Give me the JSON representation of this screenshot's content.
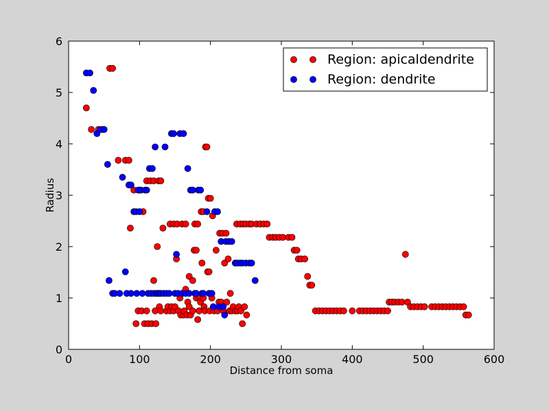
{
  "chart_data": {
    "type": "scatter",
    "title": "",
    "xlabel": "Distance from soma",
    "ylabel": "Radius",
    "xlim": [
      0,
      600
    ],
    "ylim": [
      0,
      6
    ],
    "xticks": [
      "0",
      "100",
      "200",
      "300",
      "400",
      "500",
      "600"
    ],
    "yticks": [
      "0",
      "1",
      "2",
      "3",
      "4",
      "5",
      "6"
    ],
    "grid": false,
    "legend_position": "top-right",
    "series": [
      {
        "name": "Region: apicaldendrite",
        "color": "#ff0000",
        "points": [
          [
            25,
            4.7
          ],
          [
            32,
            4.28
          ],
          [
            42,
            4.28
          ],
          [
            48,
            4.28
          ],
          [
            58,
            5.47
          ],
          [
            62,
            5.47
          ],
          [
            70,
            3.68
          ],
          [
            80,
            3.68
          ],
          [
            85,
            3.68
          ],
          [
            87,
            2.36
          ],
          [
            92,
            3.1
          ],
          [
            95,
            0.5
          ],
          [
            98,
            0.75
          ],
          [
            100,
            3.1
          ],
          [
            103,
            0.75
          ],
          [
            105,
            2.68
          ],
          [
            107,
            0.5
          ],
          [
            110,
            3.28
          ],
          [
            110,
            0.75
          ],
          [
            112,
            0.5
          ],
          [
            115,
            3.28
          ],
          [
            117,
            0.5
          ],
          [
            120,
            1.34
          ],
          [
            120,
            3.28
          ],
          [
            122,
            0.75
          ],
          [
            123,
            0.5
          ],
          [
            125,
            2.0
          ],
          [
            127,
            3.28
          ],
          [
            128,
            0.83
          ],
          [
            130,
            3.28
          ],
          [
            130,
            0.75
          ],
          [
            133,
            2.36
          ],
          [
            138,
            0.75
          ],
          [
            140,
            0.83
          ],
          [
            143,
            2.44
          ],
          [
            143,
            0.75
          ],
          [
            145,
            0.83
          ],
          [
            148,
            2.44
          ],
          [
            148,
            0.75
          ],
          [
            150,
            0.83
          ],
          [
            152,
            1.76
          ],
          [
            153,
            2.44
          ],
          [
            155,
            0.75
          ],
          [
            157,
            1.0
          ],
          [
            158,
            0.67
          ],
          [
            160,
            2.44
          ],
          [
            162,
            0.67
          ],
          [
            163,
            0.75
          ],
          [
            165,
            1.17
          ],
          [
            165,
            2.44
          ],
          [
            167,
            0.67
          ],
          [
            168,
            0.92
          ],
          [
            170,
            0.83
          ],
          [
            170,
            1.42
          ],
          [
            172,
            0.67
          ],
          [
            175,
            1.34
          ],
          [
            175,
            0.75
          ],
          [
            177,
            1.93
          ],
          [
            178,
            2.44
          ],
          [
            180,
            1.0
          ],
          [
            180,
            1.93
          ],
          [
            182,
            0.58
          ],
          [
            182,
            2.44
          ],
          [
            184,
            0.75
          ],
          [
            185,
            1.0
          ],
          [
            186,
            0.92
          ],
          [
            187,
            2.68
          ],
          [
            188,
            1.68
          ],
          [
            190,
            2.68
          ],
          [
            190,
            1.0
          ],
          [
            191,
            0.83
          ],
          [
            192,
            0.75
          ],
          [
            193,
            3.94
          ],
          [
            195,
            3.94
          ],
          [
            196,
            1.51
          ],
          [
            197,
            2.94
          ],
          [
            198,
            1.51
          ],
          [
            199,
            0.75
          ],
          [
            200,
            2.94
          ],
          [
            202,
            1.0
          ],
          [
            203,
            2.6
          ],
          [
            205,
            0.75
          ],
          [
            208,
            1.93
          ],
          [
            210,
            0.75
          ],
          [
            212,
            0.92
          ],
          [
            213,
            2.26
          ],
          [
            215,
            0.92
          ],
          [
            217,
            2.26
          ],
          [
            218,
            0.75
          ],
          [
            220,
            1.68
          ],
          [
            222,
            2.26
          ],
          [
            223,
            0.92
          ],
          [
            225,
            1.76
          ],
          [
            227,
            0.75
          ],
          [
            228,
            1.09
          ],
          [
            230,
            0.75
          ],
          [
            232,
            0.83
          ],
          [
            235,
            0.75
          ],
          [
            237,
            2.44
          ],
          [
            238,
            0.75
          ],
          [
            240,
            0.83
          ],
          [
            242,
            2.44
          ],
          [
            243,
            0.75
          ],
          [
            245,
            0.5
          ],
          [
            246,
            2.44
          ],
          [
            248,
            0.83
          ],
          [
            250,
            2.44
          ],
          [
            251,
            0.67
          ],
          [
            255,
            2.44
          ],
          [
            258,
            2.44
          ],
          [
            265,
            2.44
          ],
          [
            270,
            2.44
          ],
          [
            275,
            2.44
          ],
          [
            280,
            2.44
          ],
          [
            283,
            2.18
          ],
          [
            288,
            2.18
          ],
          [
            292,
            2.18
          ],
          [
            297,
            2.18
          ],
          [
            302,
            2.18
          ],
          [
            310,
            2.18
          ],
          [
            315,
            2.18
          ],
          [
            318,
            1.93
          ],
          [
            322,
            1.93
          ],
          [
            324,
            1.76
          ],
          [
            328,
            1.76
          ],
          [
            333,
            1.76
          ],
          [
            337,
            1.42
          ],
          [
            340,
            1.25
          ],
          [
            343,
            1.25
          ],
          [
            348,
            0.75
          ],
          [
            353,
            0.75
          ],
          [
            358,
            0.75
          ],
          [
            363,
            0.75
          ],
          [
            368,
            0.75
          ],
          [
            373,
            0.75
          ],
          [
            378,
            0.75
          ],
          [
            383,
            0.75
          ],
          [
            388,
            0.75
          ],
          [
            400,
            0.75
          ],
          [
            410,
            0.75
          ],
          [
            415,
            0.75
          ],
          [
            420,
            0.75
          ],
          [
            425,
            0.75
          ],
          [
            430,
            0.75
          ],
          [
            435,
            0.75
          ],
          [
            440,
            0.75
          ],
          [
            445,
            0.75
          ],
          [
            450,
            0.75
          ],
          [
            452,
            0.92
          ],
          [
            456,
            0.92
          ],
          [
            460,
            0.92
          ],
          [
            465,
            0.92
          ],
          [
            470,
            0.92
          ],
          [
            475,
            1.85
          ],
          [
            478,
            0.92
          ],
          [
            482,
            0.83
          ],
          [
            487,
            0.83
          ],
          [
            492,
            0.83
          ],
          [
            497,
            0.83
          ],
          [
            502,
            0.83
          ],
          [
            512,
            0.83
          ],
          [
            517,
            0.83
          ],
          [
            522,
            0.83
          ],
          [
            527,
            0.83
          ],
          [
            532,
            0.83
          ],
          [
            537,
            0.83
          ],
          [
            542,
            0.83
          ],
          [
            547,
            0.83
          ],
          [
            552,
            0.83
          ],
          [
            557,
            0.83
          ],
          [
            560,
            0.67
          ],
          [
            564,
            0.67
          ]
        ]
      },
      {
        "name": "Region: dendrite",
        "color": "#0000ff",
        "points": [
          [
            25,
            5.38
          ],
          [
            30,
            5.38
          ],
          [
            35,
            5.04
          ],
          [
            40,
            4.2
          ],
          [
            45,
            4.28
          ],
          [
            50,
            4.28
          ],
          [
            55,
            3.6
          ],
          [
            57,
            1.34
          ],
          [
            62,
            1.09
          ],
          [
            65,
            1.09
          ],
          [
            72,
            1.09
          ],
          [
            76,
            3.35
          ],
          [
            80,
            1.51
          ],
          [
            82,
            1.09
          ],
          [
            85,
            3.2
          ],
          [
            88,
            3.2
          ],
          [
            88,
            1.09
          ],
          [
            92,
            2.68
          ],
          [
            95,
            2.68
          ],
          [
            96,
            1.09
          ],
          [
            98,
            3.1
          ],
          [
            100,
            2.68
          ],
          [
            102,
            3.1
          ],
          [
            104,
            1.09
          ],
          [
            108,
            3.1
          ],
          [
            110,
            3.1
          ],
          [
            112,
            1.09
          ],
          [
            114,
            3.52
          ],
          [
            116,
            1.09
          ],
          [
            118,
            3.52
          ],
          [
            120,
            1.09
          ],
          [
            122,
            3.94
          ],
          [
            124,
            1.09
          ],
          [
            126,
            1.09
          ],
          [
            128,
            1.09
          ],
          [
            130,
            1.09
          ],
          [
            134,
            1.09
          ],
          [
            136,
            3.94
          ],
          [
            138,
            1.09
          ],
          [
            142,
            1.09
          ],
          [
            145,
            4.2
          ],
          [
            148,
            4.2
          ],
          [
            150,
            1.09
          ],
          [
            152,
            1.85
          ],
          [
            154,
            1.09
          ],
          [
            157,
            4.2
          ],
          [
            160,
            1.09
          ],
          [
            162,
            4.2
          ],
          [
            165,
            1.09
          ],
          [
            168,
            3.52
          ],
          [
            170,
            1.09
          ],
          [
            172,
            3.1
          ],
          [
            175,
            3.1
          ],
          [
            178,
            1.09
          ],
          [
            180,
            1.09
          ],
          [
            183,
            3.1
          ],
          [
            186,
            3.1
          ],
          [
            188,
            1.09
          ],
          [
            190,
            1.09
          ],
          [
            195,
            2.68
          ],
          [
            198,
            1.09
          ],
          [
            202,
            1.09
          ],
          [
            204,
            0.83
          ],
          [
            206,
            2.68
          ],
          [
            210,
            2.68
          ],
          [
            212,
            0.83
          ],
          [
            215,
            2.1
          ],
          [
            218,
            0.83
          ],
          [
            220,
            0.67
          ],
          [
            222,
            2.1
          ],
          [
            226,
            2.1
          ],
          [
            230,
            2.1
          ],
          [
            235,
            1.68
          ],
          [
            238,
            1.68
          ],
          [
            242,
            1.68
          ],
          [
            245,
            1.68
          ],
          [
            250,
            1.68
          ],
          [
            255,
            1.68
          ],
          [
            258,
            1.68
          ],
          [
            263,
            1.34
          ]
        ]
      }
    ]
  }
}
